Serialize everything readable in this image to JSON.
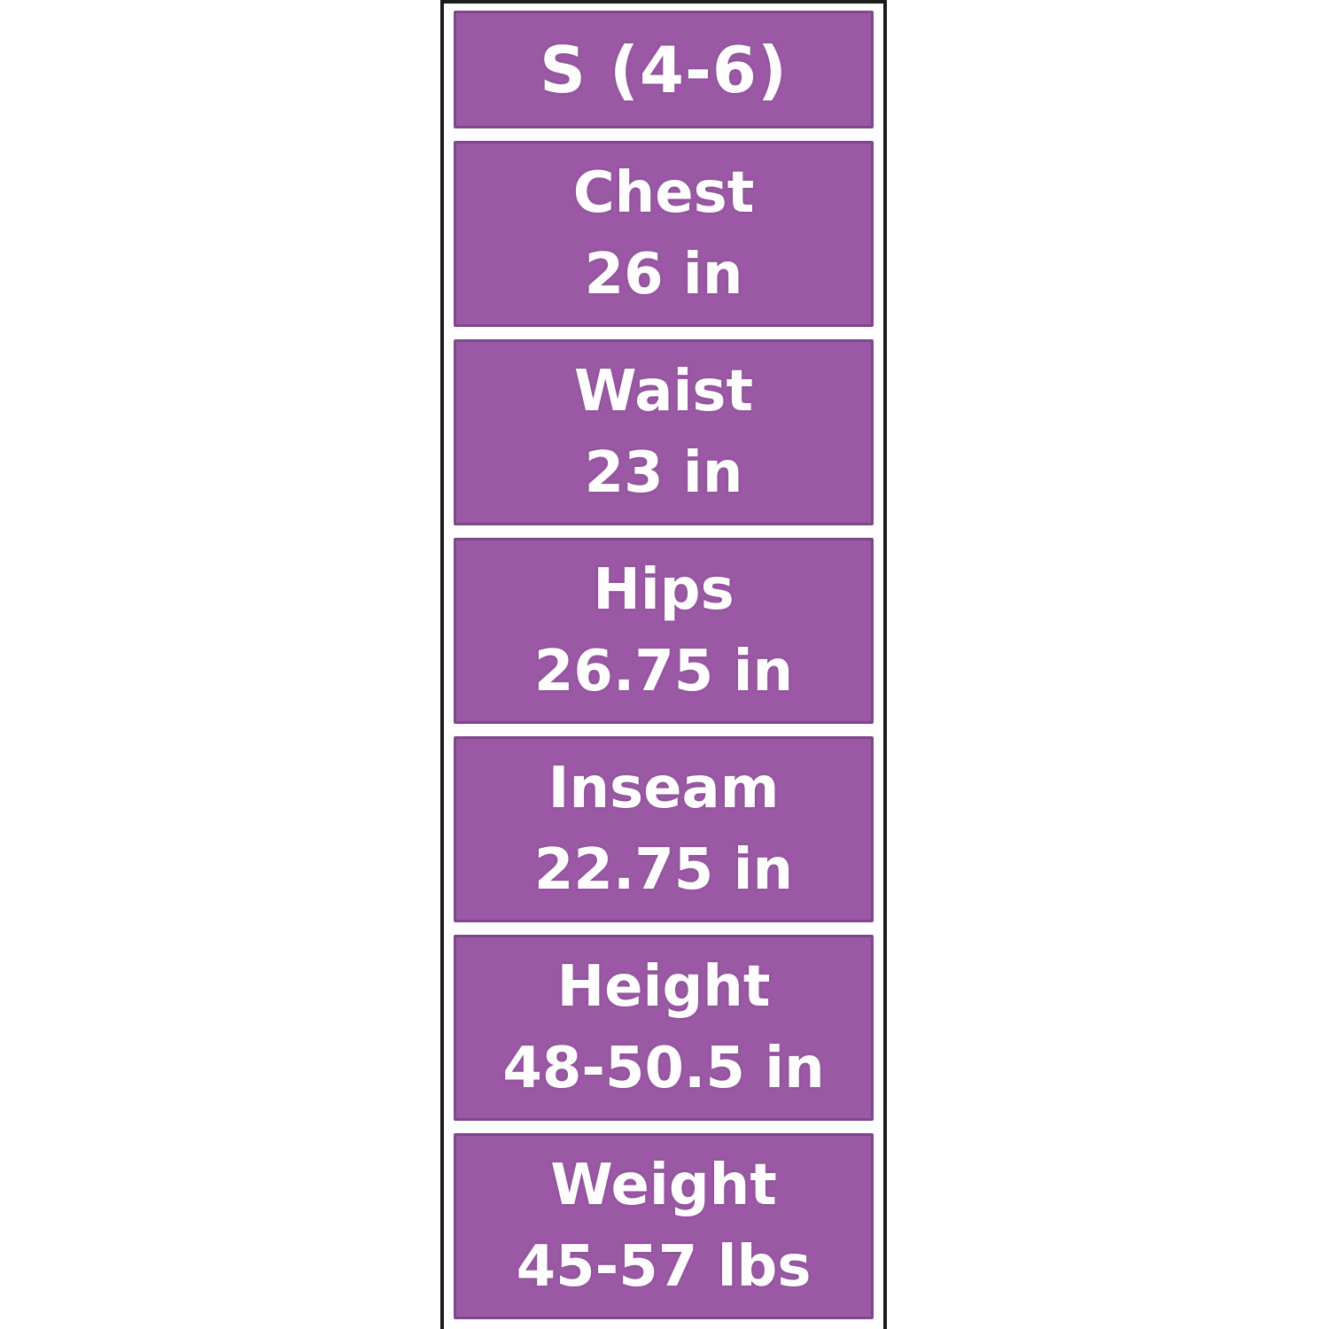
{
  "size_chart": {
    "header": "S (4-6)",
    "rows": [
      {
        "label": "Chest",
        "value": "26 in"
      },
      {
        "label": "Waist",
        "value": "23 in"
      },
      {
        "label": "Hips",
        "value": "26.75 in"
      },
      {
        "label": "Inseam",
        "value": "22.75 in"
      },
      {
        "label": "Height",
        "value": "48-50.5 in"
      },
      {
        "label": "Weight",
        "value": "45-57 lbs"
      }
    ],
    "colors": {
      "cell_fill": "#9b59a5",
      "cell_border": "#7e478b",
      "frame_border": "#1b1b1b",
      "text": "#ffffff",
      "background": "#ffffff"
    }
  }
}
